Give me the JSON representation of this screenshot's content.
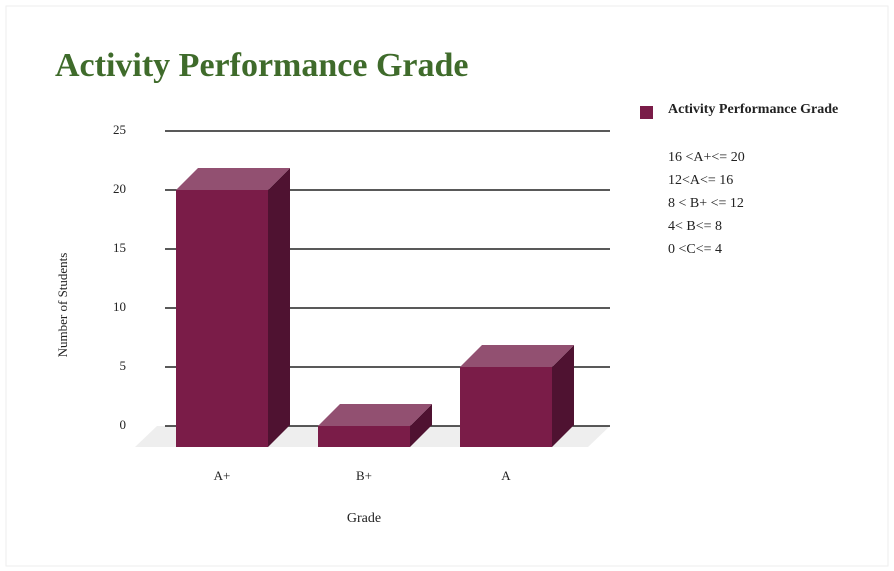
{
  "chart_data": {
    "type": "bar3d",
    "title": "Activity Performance Grade",
    "xlabel": "Grade",
    "ylabel": "Number of Students",
    "categories": [
      "A+",
      "B+",
      "A"
    ],
    "series": [
      {
        "name": "Activity Performance Grade",
        "color": "#7a1c48",
        "values": [
          20,
          0,
          5
        ]
      }
    ],
    "ylim": [
      0,
      25
    ],
    "yticks": [
      0,
      5,
      10,
      15,
      20,
      25
    ],
    "grid": true,
    "legend_position": "right",
    "legend_notes": [
      "16 <A+<= 20",
      "12<A<= 16",
      "8 < B+ <= 12",
      "4< B<= 8",
      "0 <C<= 4"
    ]
  }
}
